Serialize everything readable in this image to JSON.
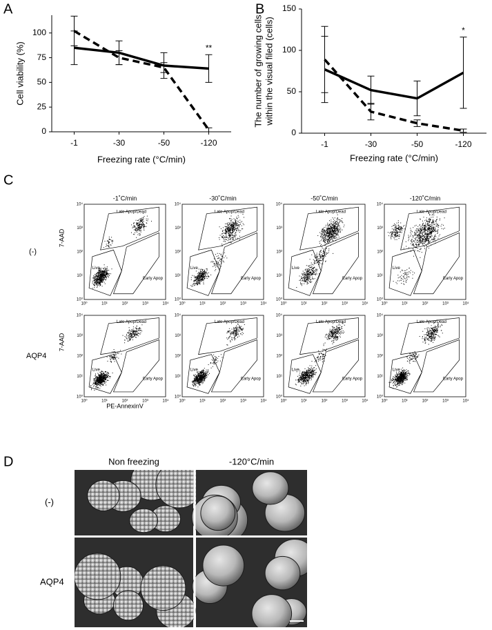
{
  "chart_data": [
    {
      "type": "line",
      "panel": "A",
      "ylabel": [
        "Cell viability (%)"
      ],
      "xlabel": "Freezing rate (°C/min)",
      "categories": [
        "-1",
        "-30",
        "-50",
        "-120"
      ],
      "series": [
        {
          "style": "solid",
          "color": "#000000",
          "values": [
            85,
            80,
            67,
            64
          ],
          "errors": [
            17,
            12,
            13,
            14
          ]
        },
        {
          "style": "dashed",
          "color": "#000000",
          "values": [
            102,
            75,
            65,
            2
          ],
          "errors": [
            15,
            7,
            5,
            2
          ]
        }
      ],
      "ylim": [
        0,
        118
      ],
      "yticks": [
        0,
        25,
        50,
        75,
        100
      ],
      "annotation": "**"
    },
    {
      "type": "line",
      "panel": "B",
      "ylabel": [
        "The number of growing cells",
        "within the visual filed (cells)"
      ],
      "xlabel": "Freezing rate (°C/min)",
      "categories": [
        "-1",
        "-30",
        "-50",
        "-120"
      ],
      "series": [
        {
          "style": "solid",
          "color": "#000000",
          "values": [
            77,
            52,
            42,
            73
          ],
          "errors": [
            40,
            17,
            21,
            43
          ]
        },
        {
          "style": "dashed",
          "color": "#000000",
          "values": [
            89,
            26,
            12,
            3
          ],
          "errors": [
            40,
            10,
            4,
            2
          ]
        }
      ],
      "ylim": [
        0,
        150
      ],
      "yticks": [
        0,
        50,
        100,
        150
      ],
      "annotation": "*"
    }
  ],
  "panel_c": {
    "label": "C",
    "columns": [
      "-1˚C/min",
      "-30˚C/min",
      "-50˚C/min",
      "-120˚C/min"
    ],
    "rows": [
      "(-)",
      "AQP4"
    ],
    "gates": {
      "late": "Late Apop/Dead",
      "live": "Live",
      "early": "Early Apop"
    },
    "axis_ticks": [
      "10⁰",
      "10¹",
      "10²",
      "10³",
      "10⁴"
    ],
    "ylabel": "7-AAD",
    "xlabel": "PE-AnnexinV"
  },
  "panel_d": {
    "label": "D",
    "columns": [
      "Non freezing",
      "-120°C/min"
    ],
    "rows": [
      "(-)",
      "AQP4"
    ]
  }
}
